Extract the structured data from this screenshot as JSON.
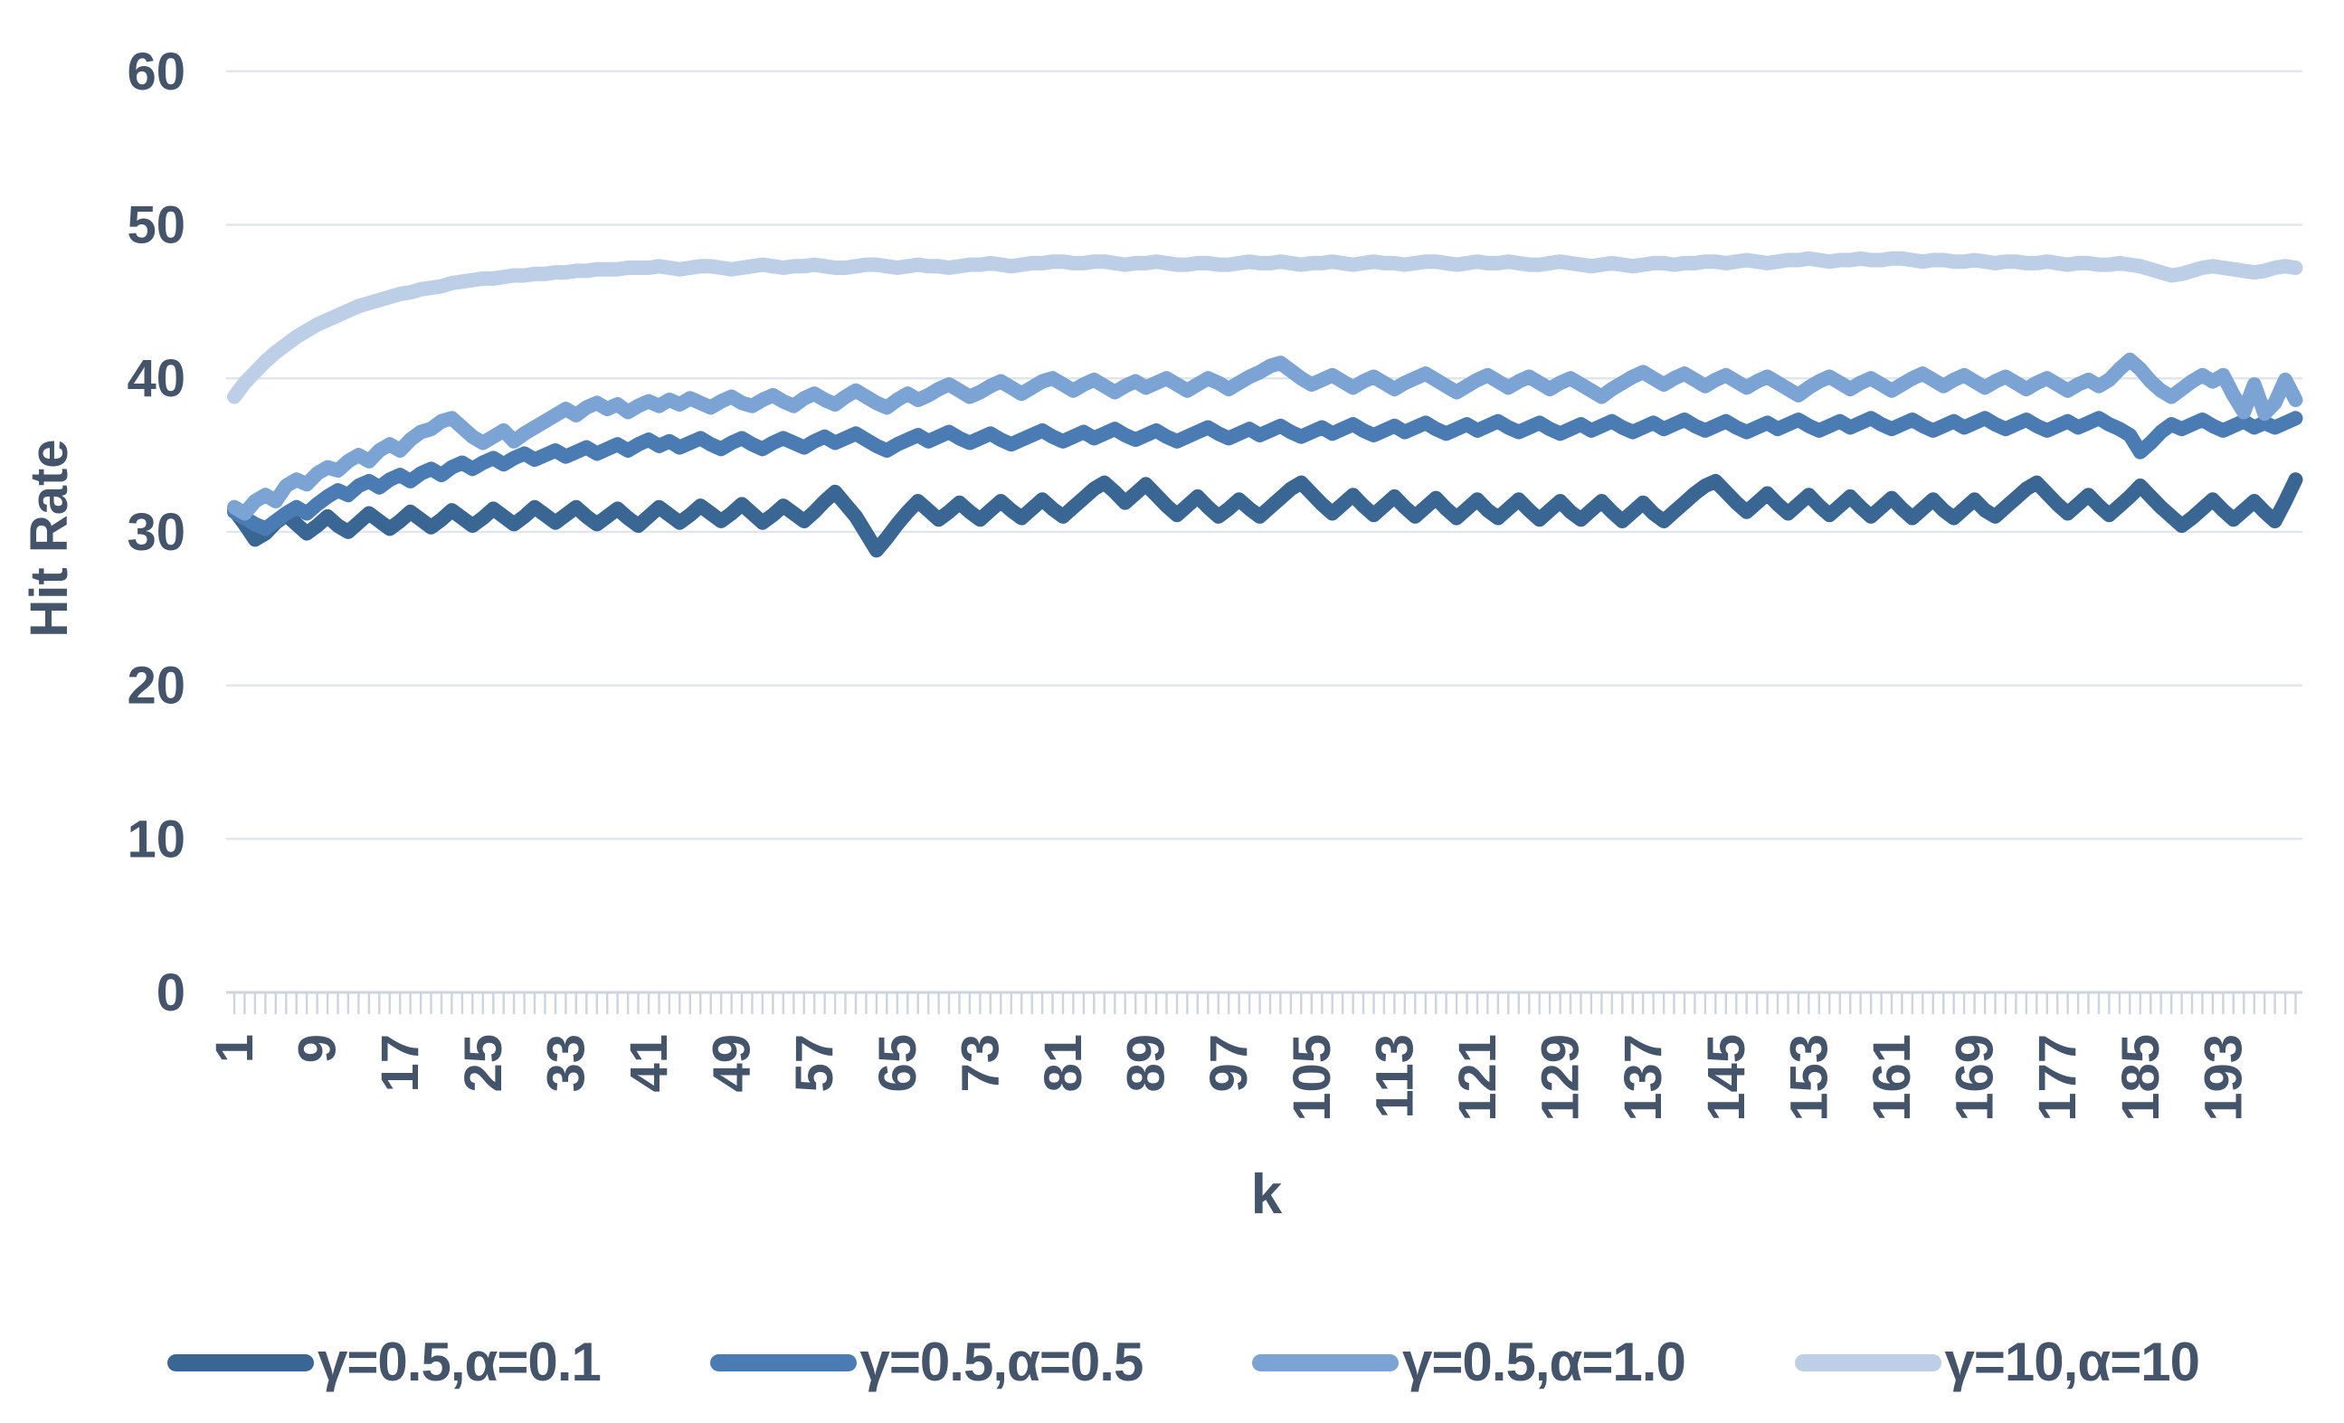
{
  "axis_text_color": "#44546a",
  "gridline_color": "#e2e6ec",
  "axis_line_color": "#ccd4de",
  "chart_data": {
    "type": "line",
    "title": "",
    "xlabel": "k",
    "ylabel": "Hit Rate",
    "x_start": 1,
    "x_end": 200,
    "xticks": [
      1,
      9,
      17,
      25,
      33,
      41,
      49,
      57,
      65,
      73,
      81,
      89,
      97,
      105,
      113,
      121,
      129,
      137,
      145,
      153,
      161,
      169,
      177,
      185,
      193
    ],
    "yticks": [
      0,
      10,
      20,
      30,
      40,
      50,
      60
    ],
    "ylim": [
      0,
      60
    ],
    "grid": "horizontal",
    "legend_position": "bottom",
    "series": [
      {
        "name": "γ=0.5,α=0.1",
        "color": "#3a6694",
        "values": [
          31.4,
          30.5,
          29.5,
          29.9,
          30.6,
          31.1,
          30.5,
          29.9,
          30.4,
          31.0,
          30.4,
          30.0,
          30.6,
          31.2,
          30.7,
          30.2,
          30.7,
          31.3,
          30.8,
          30.3,
          30.8,
          31.4,
          30.9,
          30.4,
          30.9,
          31.5,
          31.0,
          30.5,
          31.0,
          31.6,
          31.1,
          30.6,
          31.1,
          31.6,
          31.0,
          30.5,
          31.0,
          31.5,
          30.9,
          30.4,
          31.0,
          31.6,
          31.1,
          30.6,
          31.1,
          31.7,
          31.2,
          30.7,
          31.2,
          31.8,
          31.2,
          30.6,
          31.1,
          31.7,
          31.2,
          30.7,
          31.3,
          32.0,
          32.6,
          31.8,
          31.0,
          29.9,
          28.8,
          29.6,
          30.5,
          31.3,
          32.0,
          31.4,
          30.8,
          31.3,
          31.9,
          31.3,
          30.8,
          31.4,
          32.0,
          31.4,
          30.9,
          31.5,
          32.1,
          31.5,
          31.0,
          31.6,
          32.2,
          32.8,
          33.2,
          32.6,
          31.9,
          32.5,
          33.1,
          32.4,
          31.7,
          31.1,
          31.7,
          32.3,
          31.6,
          31.0,
          31.5,
          32.1,
          31.5,
          31.0,
          31.6,
          32.2,
          32.8,
          33.2,
          32.5,
          31.8,
          31.2,
          31.8,
          32.4,
          31.7,
          31.1,
          31.7,
          32.3,
          31.6,
          31.0,
          31.6,
          32.2,
          31.5,
          30.9,
          31.5,
          32.1,
          31.4,
          30.9,
          31.5,
          32.1,
          31.4,
          30.8,
          31.4,
          32.0,
          31.3,
          30.8,
          31.4,
          32.0,
          31.3,
          30.7,
          31.3,
          31.9,
          31.2,
          30.7,
          31.3,
          31.9,
          32.5,
          33.0,
          33.3,
          32.6,
          31.9,
          31.3,
          31.9,
          32.5,
          31.8,
          31.2,
          31.8,
          32.4,
          31.7,
          31.1,
          31.7,
          32.3,
          31.6,
          31.0,
          31.6,
          32.2,
          31.5,
          30.9,
          31.5,
          32.1,
          31.4,
          30.9,
          31.5,
          32.1,
          31.4,
          31.0,
          31.6,
          32.2,
          32.8,
          33.2,
          32.5,
          31.8,
          31.2,
          31.8,
          32.4,
          31.7,
          31.1,
          31.7,
          32.3,
          33.0,
          32.3,
          31.6,
          31.0,
          30.4,
          30.9,
          31.5,
          32.1,
          31.4,
          30.8,
          31.4,
          32.0,
          31.3,
          30.7,
          32.0,
          33.4
        ]
      },
      {
        "name": "γ=0.5,α=0.5",
        "color": "#4a7bb3",
        "values": [
          31.3,
          30.9,
          30.5,
          30.2,
          30.7,
          31.2,
          31.6,
          31.2,
          31.8,
          32.3,
          32.7,
          32.4,
          33.0,
          33.3,
          32.9,
          33.4,
          33.7,
          33.3,
          33.8,
          34.1,
          33.7,
          34.2,
          34.5,
          34.1,
          34.5,
          34.8,
          34.4,
          34.8,
          35.1,
          34.7,
          35.0,
          35.3,
          34.9,
          35.2,
          35.5,
          35.1,
          35.4,
          35.7,
          35.3,
          35.7,
          36.0,
          35.6,
          35.9,
          35.5,
          35.8,
          36.1,
          35.7,
          35.4,
          35.8,
          36.1,
          35.7,
          35.4,
          35.8,
          36.1,
          35.8,
          35.5,
          35.9,
          36.2,
          35.8,
          36.1,
          36.4,
          36.0,
          35.6,
          35.3,
          35.7,
          36.0,
          36.3,
          35.9,
          36.2,
          36.5,
          36.1,
          35.8,
          36.1,
          36.4,
          36.0,
          35.7,
          36.0,
          36.3,
          36.6,
          36.2,
          35.9,
          36.2,
          36.5,
          36.1,
          36.4,
          36.7,
          36.3,
          36.0,
          36.3,
          36.6,
          36.2,
          35.9,
          36.2,
          36.5,
          36.8,
          36.4,
          36.1,
          36.4,
          36.7,
          36.3,
          36.6,
          36.9,
          36.5,
          36.2,
          36.5,
          36.8,
          36.4,
          36.7,
          37.0,
          36.6,
          36.3,
          36.6,
          36.9,
          36.5,
          36.8,
          37.1,
          36.7,
          36.4,
          36.7,
          37.0,
          36.6,
          36.9,
          37.2,
          36.8,
          36.5,
          36.8,
          37.1,
          36.7,
          36.4,
          36.7,
          37.0,
          36.6,
          36.9,
          37.2,
          36.8,
          36.5,
          36.8,
          37.1,
          36.7,
          37.0,
          37.3,
          36.9,
          36.6,
          36.9,
          37.2,
          36.8,
          36.5,
          36.8,
          37.1,
          36.7,
          37.0,
          37.3,
          36.9,
          36.6,
          36.9,
          37.2,
          36.8,
          37.1,
          37.4,
          37.0,
          36.7,
          37.0,
          37.3,
          36.9,
          36.6,
          36.9,
          37.2,
          36.8,
          37.1,
          37.4,
          37.0,
          36.7,
          37.0,
          37.3,
          36.9,
          36.6,
          36.9,
          37.2,
          36.8,
          37.1,
          37.4,
          37.0,
          36.7,
          36.3,
          35.2,
          35.8,
          36.5,
          37.0,
          36.7,
          37.0,
          37.3,
          36.9,
          36.6,
          36.9,
          37.2,
          36.8,
          37.1,
          36.8,
          37.1,
          37.4
        ]
      },
      {
        "name": "γ=0.5,α=1.0",
        "color": "#7ba3d4",
        "values": [
          31.6,
          31.2,
          32.0,
          32.4,
          32.0,
          33.0,
          33.4,
          33.1,
          33.8,
          34.2,
          34.0,
          34.6,
          35.0,
          34.6,
          35.3,
          35.7,
          35.3,
          36.0,
          36.5,
          36.7,
          37.2,
          37.4,
          36.8,
          36.2,
          35.8,
          36.2,
          36.6,
          35.9,
          36.4,
          36.8,
          37.2,
          37.6,
          38.0,
          37.6,
          38.1,
          38.4,
          38.0,
          38.3,
          37.8,
          38.2,
          38.5,
          38.2,
          38.6,
          38.3,
          38.7,
          38.4,
          38.1,
          38.5,
          38.8,
          38.4,
          38.2,
          38.6,
          38.9,
          38.5,
          38.2,
          38.7,
          39.0,
          38.6,
          38.3,
          38.8,
          39.2,
          38.8,
          38.4,
          38.1,
          38.6,
          39.0,
          38.6,
          38.9,
          39.3,
          39.6,
          39.2,
          38.8,
          39.1,
          39.5,
          39.8,
          39.4,
          39.0,
          39.4,
          39.8,
          40.0,
          39.6,
          39.2,
          39.6,
          39.9,
          39.5,
          39.1,
          39.5,
          39.8,
          39.4,
          39.7,
          40.0,
          39.6,
          39.2,
          39.6,
          40.0,
          39.7,
          39.3,
          39.7,
          40.1,
          40.4,
          40.8,
          41.0,
          40.5,
          40.0,
          39.6,
          39.9,
          40.2,
          39.8,
          39.4,
          39.8,
          40.1,
          39.7,
          39.3,
          39.7,
          40.0,
          40.3,
          39.9,
          39.5,
          39.1,
          39.5,
          39.9,
          40.2,
          39.8,
          39.4,
          39.8,
          40.1,
          39.7,
          39.3,
          39.7,
          40.0,
          39.6,
          39.2,
          38.8,
          39.3,
          39.7,
          40.1,
          40.4,
          40.0,
          39.6,
          40.0,
          40.3,
          39.9,
          39.5,
          39.9,
          40.2,
          39.8,
          39.4,
          39.8,
          40.1,
          39.7,
          39.3,
          38.9,
          39.4,
          39.8,
          40.1,
          39.7,
          39.3,
          39.7,
          40.0,
          39.6,
          39.2,
          39.6,
          40.0,
          40.3,
          39.9,
          39.5,
          39.9,
          40.2,
          39.8,
          39.4,
          39.8,
          40.1,
          39.7,
          39.3,
          39.7,
          40.0,
          39.6,
          39.2,
          39.6,
          39.9,
          39.5,
          39.9,
          40.6,
          41.2,
          40.6,
          39.8,
          39.2,
          38.8,
          39.3,
          39.8,
          40.2,
          39.8,
          40.2,
          38.9,
          37.8,
          39.6,
          37.7,
          38.4,
          39.9,
          38.6
        ]
      },
      {
        "name": "γ=10,α=10",
        "color": "#bccfe6",
        "values": [
          38.8,
          39.7,
          40.4,
          41.1,
          41.7,
          42.2,
          42.7,
          43.1,
          43.5,
          43.8,
          44.1,
          44.4,
          44.7,
          44.9,
          45.1,
          45.3,
          45.5,
          45.6,
          45.8,
          45.9,
          46.0,
          46.2,
          46.3,
          46.4,
          46.5,
          46.5,
          46.6,
          46.7,
          46.7,
          46.8,
          46.8,
          46.9,
          46.9,
          47.0,
          47.0,
          47.1,
          47.1,
          47.1,
          47.2,
          47.2,
          47.2,
          47.3,
          47.2,
          47.1,
          47.2,
          47.3,
          47.3,
          47.2,
          47.1,
          47.2,
          47.3,
          47.4,
          47.3,
          47.2,
          47.3,
          47.3,
          47.4,
          47.3,
          47.2,
          47.2,
          47.3,
          47.4,
          47.4,
          47.3,
          47.2,
          47.3,
          47.4,
          47.3,
          47.3,
          47.2,
          47.3,
          47.4,
          47.4,
          47.5,
          47.4,
          47.3,
          47.4,
          47.5,
          47.5,
          47.6,
          47.6,
          47.5,
          47.5,
          47.6,
          47.6,
          47.5,
          47.4,
          47.5,
          47.5,
          47.6,
          47.5,
          47.4,
          47.4,
          47.5,
          47.5,
          47.4,
          47.4,
          47.5,
          47.6,
          47.5,
          47.5,
          47.6,
          47.5,
          47.4,
          47.5,
          47.5,
          47.6,
          47.5,
          47.4,
          47.5,
          47.6,
          47.5,
          47.5,
          47.4,
          47.5,
          47.6,
          47.6,
          47.5,
          47.4,
          47.5,
          47.6,
          47.5,
          47.5,
          47.6,
          47.5,
          47.4,
          47.4,
          47.5,
          47.6,
          47.5,
          47.4,
          47.3,
          47.4,
          47.5,
          47.4,
          47.3,
          47.4,
          47.5,
          47.5,
          47.4,
          47.5,
          47.5,
          47.6,
          47.6,
          47.5,
          47.6,
          47.7,
          47.6,
          47.5,
          47.6,
          47.7,
          47.7,
          47.8,
          47.7,
          47.6,
          47.7,
          47.7,
          47.8,
          47.7,
          47.7,
          47.8,
          47.8,
          47.7,
          47.6,
          47.7,
          47.7,
          47.6,
          47.6,
          47.7,
          47.6,
          47.5,
          47.6,
          47.6,
          47.5,
          47.5,
          47.6,
          47.5,
          47.4,
          47.5,
          47.5,
          47.4,
          47.4,
          47.5,
          47.4,
          47.3,
          47.1,
          46.9,
          46.7,
          46.8,
          47.0,
          47.2,
          47.3,
          47.2,
          47.1,
          47.0,
          46.9,
          47.0,
          47.2,
          47.3,
          47.2
        ]
      }
    ]
  }
}
